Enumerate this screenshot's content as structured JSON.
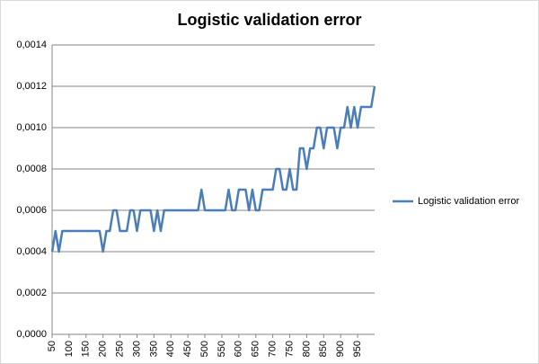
{
  "chart_data": {
    "type": "line",
    "title": "Logistic validation error",
    "x": [
      50,
      60,
      70,
      80,
      90,
      100,
      110,
      120,
      130,
      140,
      150,
      160,
      170,
      180,
      190,
      200,
      210,
      220,
      230,
      240,
      250,
      260,
      270,
      280,
      290,
      300,
      310,
      320,
      330,
      340,
      350,
      360,
      370,
      380,
      390,
      400,
      410,
      420,
      430,
      440,
      450,
      460,
      470,
      480,
      490,
      500,
      510,
      520,
      530,
      540,
      550,
      560,
      570,
      580,
      590,
      600,
      610,
      620,
      630,
      640,
      650,
      660,
      670,
      680,
      690,
      700,
      710,
      720,
      730,
      740,
      750,
      760,
      770,
      780,
      790,
      800,
      810,
      820,
      830,
      840,
      850,
      860,
      870,
      880,
      890,
      900,
      910,
      920,
      930,
      940,
      950,
      960,
      970,
      980,
      990,
      1000
    ],
    "series": [
      {
        "name": "Logistic validation error",
        "color": "#4a7ebb",
        "values": [
          0.0004,
          0.0005,
          0.0004,
          0.0005,
          0.0005,
          0.0005,
          0.0005,
          0.0005,
          0.0005,
          0.0005,
          0.0005,
          0.0005,
          0.0005,
          0.0005,
          0.0005,
          0.0004,
          0.0005,
          0.0005,
          0.0006,
          0.0006,
          0.0005,
          0.0005,
          0.0005,
          0.0006,
          0.0006,
          0.0005,
          0.0006,
          0.0006,
          0.0006,
          0.0006,
          0.0005,
          0.0006,
          0.0005,
          0.0006,
          0.0006,
          0.0006,
          0.0006,
          0.0006,
          0.0006,
          0.0006,
          0.0006,
          0.0006,
          0.0006,
          0.0006,
          0.0007,
          0.0006,
          0.0006,
          0.0006,
          0.0006,
          0.0006,
          0.0006,
          0.0006,
          0.0007,
          0.0006,
          0.0006,
          0.0007,
          0.0007,
          0.0007,
          0.0006,
          0.0007,
          0.0006,
          0.0006,
          0.0007,
          0.0007,
          0.0007,
          0.0007,
          0.0008,
          0.0008,
          0.0007,
          0.0007,
          0.0008,
          0.0007,
          0.0007,
          0.0009,
          0.0009,
          0.0008,
          0.0009,
          0.0009,
          0.001,
          0.001,
          0.0009,
          0.001,
          0.001,
          0.001,
          0.0009,
          0.001,
          0.001,
          0.0011,
          0.001,
          0.0011,
          0.001,
          0.0011,
          0.0011,
          0.0011,
          0.0011,
          0.0012
        ]
      }
    ],
    "xlim": [
      50,
      1000
    ],
    "xticks": [
      50,
      100,
      150,
      200,
      250,
      300,
      350,
      400,
      450,
      500,
      550,
      600,
      650,
      700,
      750,
      800,
      850,
      900,
      950
    ],
    "ylim": [
      0,
      0.0014
    ],
    "yticks": [
      {
        "value": 0,
        "label": "0,0000"
      },
      {
        "value": 0.0002,
        "label": "0,0002"
      },
      {
        "value": 0.0004,
        "label": "0,0004"
      },
      {
        "value": 0.0006,
        "label": "0,0006"
      },
      {
        "value": 0.0008,
        "label": "0,0008"
      },
      {
        "value": 0.001,
        "label": "0,0010"
      },
      {
        "value": 0.0012,
        "label": "0,0012"
      },
      {
        "value": 0.0014,
        "label": "0,0014"
      }
    ],
    "grid": true,
    "legend": "right"
  }
}
